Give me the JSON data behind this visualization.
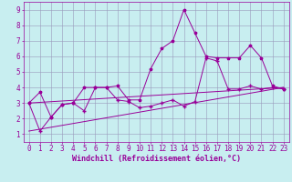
{
  "xlabel": "Windchill (Refroidissement éolien,°C)",
  "bg_color": "#c8eef0",
  "line_color": "#990099",
  "grid_color": "#9999bb",
  "xlim": [
    -0.5,
    23.5
  ],
  "ylim": [
    0.5,
    9.5
  ],
  "xticks": [
    0,
    1,
    2,
    3,
    4,
    5,
    6,
    7,
    8,
    9,
    10,
    11,
    12,
    13,
    14,
    15,
    16,
    17,
    18,
    19,
    20,
    21,
    22,
    23
  ],
  "yticks": [
    1,
    2,
    3,
    4,
    5,
    6,
    7,
    8,
    9
  ],
  "line1_x": [
    0,
    1,
    2,
    3,
    4,
    5,
    6,
    7,
    8,
    9,
    10,
    11,
    12,
    13,
    14,
    15,
    16,
    17,
    18,
    19,
    20,
    21,
    22,
    23
  ],
  "line1_y": [
    3.0,
    3.7,
    2.1,
    2.9,
    3.0,
    4.0,
    4.0,
    4.0,
    4.1,
    3.2,
    3.2,
    5.2,
    6.5,
    7.0,
    9.0,
    7.5,
    6.0,
    5.9,
    5.9,
    5.9,
    6.7,
    5.9,
    4.1,
    3.9
  ],
  "line2_x": [
    0,
    1,
    2,
    3,
    4,
    5,
    6,
    7,
    8,
    9,
    10,
    11,
    12,
    13,
    14,
    15,
    16,
    17,
    18,
    19,
    20,
    21,
    22,
    23
  ],
  "line2_y": [
    3.0,
    1.2,
    2.1,
    2.9,
    3.0,
    2.5,
    4.0,
    4.0,
    3.2,
    3.1,
    2.7,
    2.8,
    3.0,
    3.2,
    2.8,
    3.1,
    5.9,
    5.7,
    3.9,
    3.9,
    4.1,
    3.9,
    4.0,
    3.9
  ],
  "line3_x": [
    0,
    23
  ],
  "line3_y": [
    3.0,
    4.0
  ],
  "line4_x": [
    0,
    23
  ],
  "line4_y": [
    1.2,
    4.0
  ],
  "fontsize_xlabel": 6,
  "tick_fontsize": 5.5
}
